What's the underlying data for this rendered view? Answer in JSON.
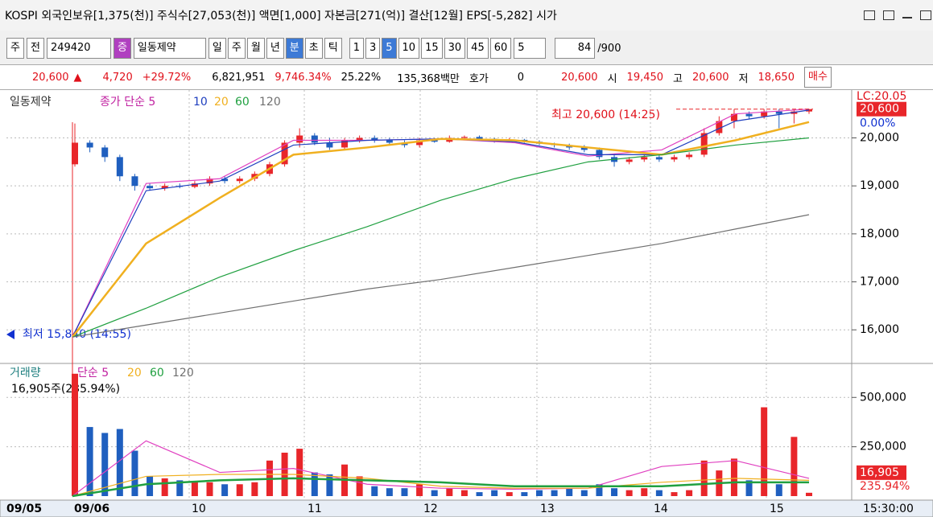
{
  "title_bar": {
    "text": "KOSPI 외국인보유[1,375(천)] 주식수[27,053(천)] 액면[1,000] 자본금[271(억)] 결산[12월] EPS[-5,282] 시가"
  },
  "toolbar": {
    "market": "주",
    "prev": "전",
    "code": "249420",
    "badge": "증",
    "name": "일동제약",
    "periods": [
      "일",
      "주",
      "월",
      "년",
      "분",
      "초",
      "틱"
    ],
    "minutes": [
      "1",
      "3",
      "5",
      "10",
      "15",
      "30",
      "45",
      "60"
    ],
    "unit": "5",
    "count": "84",
    "max": "/900"
  },
  "quote": {
    "price": "20,600",
    "change": "4,720",
    "rate": "+29.72%",
    "volume": "6,821,951",
    "volume_rate": "9,746.34%",
    "turnover": "25.22%",
    "amount": "135,368백만",
    "hoga_label": "호가",
    "hoga": "0",
    "hoga_price": "20,600",
    "open_label": "시",
    "open": "19,450",
    "high_label": "고",
    "high": "20,600",
    "low_label": "저",
    "low": "18,650",
    "buy": "매수"
  },
  "price_chart": {
    "legend_name": "일동제약",
    "legend_ma": "종가 단순 5",
    "legend_periods": [
      "10",
      "20",
      "60",
      "120"
    ],
    "high_note": "최고 20,600 (14:25)",
    "low_note": "최저 15,840 (14:55)",
    "ylim": [
      15300,
      20930
    ],
    "yticks": [
      {
        "value": 20000,
        "label": "20,000"
      },
      {
        "value": 19000,
        "label": "19,000"
      },
      {
        "value": 18000,
        "label": "18,000"
      },
      {
        "value": 17000,
        "label": "17,000"
      },
      {
        "value": 16000,
        "label": "16,000"
      }
    ],
    "last_price": {
      "value": 20600,
      "label": "20,600"
    },
    "last_rate": "0.00%",
    "lc_label": "LC:20.05",
    "candles": [
      [
        19450,
        20300,
        19400,
        19900
      ],
      [
        19900,
        19950,
        19700,
        19800
      ],
      [
        19800,
        19850,
        19500,
        19600
      ],
      [
        19600,
        19650,
        19100,
        19200
      ],
      [
        19200,
        19250,
        18900,
        19000
      ],
      [
        19000,
        19050,
        18900,
        18950
      ],
      [
        18950,
        19050,
        18900,
        19000
      ],
      [
        19000,
        19050,
        18950,
        18980
      ],
      [
        18980,
        19100,
        18950,
        19050
      ],
      [
        19050,
        19200,
        19000,
        19150
      ],
      [
        19150,
        19200,
        19050,
        19100
      ],
      [
        19100,
        19200,
        19050,
        19150
      ],
      [
        19150,
        19300,
        19100,
        19250
      ],
      [
        19250,
        19500,
        19200,
        19450
      ],
      [
        19450,
        19950,
        19400,
        19900
      ],
      [
        19900,
        20200,
        19800,
        20050
      ],
      [
        20050,
        20100,
        19850,
        19900
      ],
      [
        19900,
        20000,
        19750,
        19800
      ],
      [
        19800,
        20000,
        19750,
        19950
      ],
      [
        19950,
        20050,
        19900,
        20000
      ],
      [
        20000,
        20050,
        19900,
        19950
      ],
      [
        19950,
        20000,
        19850,
        19900
      ],
      [
        19900,
        19950,
        19800,
        19850
      ],
      [
        19850,
        20000,
        19800,
        19950
      ],
      [
        19950,
        20000,
        19900,
        19920
      ],
      [
        19920,
        20050,
        19900,
        20000
      ],
      [
        20000,
        20050,
        19950,
        20020
      ],
      [
        20020,
        20050,
        19950,
        19980
      ],
      [
        19980,
        20000,
        19900,
        19950
      ],
      [
        19950,
        20000,
        19900,
        19960
      ],
      [
        19960,
        19980,
        19900,
        19920
      ],
      [
        19920,
        19950,
        19850,
        19880
      ],
      [
        19880,
        19900,
        19800,
        19850
      ],
      [
        19850,
        19880,
        19750,
        19800
      ],
      [
        19800,
        19850,
        19700,
        19750
      ],
      [
        19750,
        19800,
        19550,
        19600
      ],
      [
        19600,
        19650,
        19400,
        19500
      ],
      [
        19500,
        19600,
        19450,
        19550
      ],
      [
        19550,
        19650,
        19500,
        19600
      ],
      [
        19600,
        19650,
        19500,
        19550
      ],
      [
        19550,
        19650,
        19500,
        19600
      ],
      [
        19600,
        19700,
        19550,
        19650
      ],
      [
        19650,
        20200,
        19600,
        20100
      ],
      [
        20100,
        20450,
        20050,
        20350
      ],
      [
        20350,
        20600,
        20200,
        20500
      ],
      [
        20500,
        20550,
        20400,
        20450
      ],
      [
        20450,
        20600,
        20400,
        20550
      ],
      [
        20550,
        20600,
        20200,
        20500
      ],
      [
        20500,
        20600,
        20300,
        20550
      ],
      [
        20550,
        20600,
        20500,
        20600
      ]
    ],
    "ma": [
      {
        "color": "#e040c0",
        "values": [
          15850,
          19050,
          19150,
          19950,
          19950,
          19980,
          19900,
          19620,
          19750,
          20500,
          20600
        ]
      },
      {
        "color": "#1f3fbf",
        "values": [
          15850,
          18900,
          19100,
          19850,
          19950,
          19980,
          19920,
          19650,
          19650,
          20350,
          20580
        ]
      },
      {
        "color": "#f0b020",
        "values": [
          15850,
          17800,
          18750,
          19650,
          19800,
          19980,
          19950,
          19800,
          19650,
          19950,
          20330
        ]
      },
      {
        "color": "#20a040",
        "values": [
          15850,
          16450,
          17100,
          17650,
          18150,
          18700,
          19150,
          19500,
          19650,
          19850,
          20000
        ]
      },
      {
        "color": "#707070",
        "values": [
          15850,
          16100,
          16350,
          16600,
          16850,
          17050,
          17300,
          17550,
          17800,
          18100,
          18400
        ]
      }
    ]
  },
  "volume_chart": {
    "legend_name": "거래량",
    "legend_ma": "단순 5",
    "legend_periods": [
      "20",
      "60",
      "120"
    ],
    "summary": "16,905주(235.94%)",
    "ylim": [
      0,
      660000
    ],
    "yticks": [
      {
        "value": 500000,
        "label": "500,000"
      },
      {
        "value": 250000,
        "label": "250,000"
      }
    ],
    "last_volume": {
      "value": 16905,
      "label": "16,905"
    },
    "last_rate": "235.94%",
    "values": [
      620000,
      350000,
      320000,
      340000,
      230000,
      100000,
      90000,
      80000,
      70000,
      70000,
      60000,
      60000,
      70000,
      180000,
      220000,
      240000,
      120000,
      110000,
      160000,
      100000,
      50000,
      40000,
      40000,
      60000,
      30000,
      40000,
      30000,
      20000,
      30000,
      20000,
      20000,
      30000,
      30000,
      40000,
      30000,
      60000,
      40000,
      30000,
      40000,
      30000,
      20000,
      30000,
      180000,
      130000,
      190000,
      80000,
      450000,
      60000,
      300000,
      16905
    ],
    "ma": [
      {
        "color": "#e040c0",
        "values": [
          0,
          280000,
          120000,
          140000,
          60000,
          40000,
          35000,
          40000,
          150000,
          180000,
          90000
        ]
      },
      {
        "color": "#f0b020",
        "values": [
          0,
          100000,
          110000,
          110000,
          90000,
          50000,
          40000,
          40000,
          70000,
          90000,
          80000
        ]
      },
      {
        "color": "#20a040",
        "values": [
          0,
          60000,
          80000,
          90000,
          80000,
          70000,
          50000,
          50000,
          50000,
          70000,
          70000
        ]
      }
    ]
  },
  "x_axis": {
    "labels": [
      "09/05",
      "09/06",
      "10",
      "11",
      "12",
      "13",
      "14",
      "15"
    ],
    "time": "15:30:00"
  }
}
